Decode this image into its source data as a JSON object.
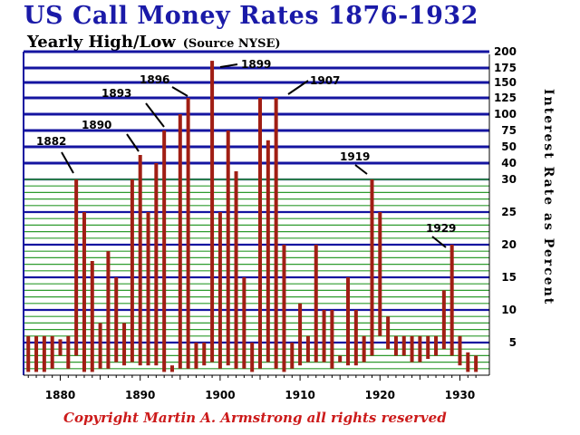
{
  "title": "US Call Money Rates 1876-1932",
  "subtitle": "Yearly High/Low",
  "source": "(Source NYSE)",
  "copyright": "Copyright Martin A. Armstrong all rights reserved",
  "chart_data": {
    "type": "bar",
    "title": "US Call Money Rates 1876-1932",
    "subtitle": "Yearly High/Low",
    "ylabel": "Interest Rate as Percent",
    "xlabel": "",
    "x_ticks": [
      1880,
      1890,
      1900,
      1910,
      1920,
      1930
    ],
    "y_ticks": [
      5,
      10,
      15,
      20,
      25,
      30,
      40,
      50,
      75,
      100,
      125,
      150,
      175,
      200
    ],
    "y_scale": "piecewise: linear 0-30 (lower section), compressed 30-200 (upper section)",
    "xlim": [
      1876,
      1932
    ],
    "ylim": [
      0,
      200
    ],
    "grid": true,
    "series": [
      {
        "x": [
          1876,
          1877,
          1878,
          1879,
          1880,
          1881,
          1882,
          1883,
          1884,
          1885,
          1886,
          1887,
          1888,
          1889,
          1890,
          1891,
          1892,
          1893,
          1894,
          1895,
          1896,
          1897,
          1898,
          1899,
          1900,
          1901,
          1902,
          1903,
          1904,
          1905,
          1906,
          1907,
          1908,
          1909,
          1910,
          1911,
          1912,
          1913,
          1914,
          1915,
          1916,
          1917,
          1918,
          1919,
          1920,
          1921,
          1922,
          1923,
          1924,
          1925,
          1926,
          1927,
          1928,
          1929,
          1930,
          1931,
          1932
        ],
        "high": [
          6,
          6,
          6,
          6,
          5.5,
          6,
          30,
          25,
          17.5,
          8,
          19,
          15,
          8,
          30,
          45,
          25,
          40,
          75,
          1.5,
          100,
          125,
          5,
          5,
          186,
          25,
          75,
          35,
          15,
          5,
          125,
          60,
          125,
          20,
          5,
          11,
          6,
          20,
          10,
          10,
          3,
          15,
          10,
          6,
          30,
          25,
          9,
          6,
          6,
          6,
          6,
          6,
          6,
          13,
          20,
          6,
          3.5,
          3
        ],
        "low": [
          0.5,
          0.5,
          0.5,
          1,
          3,
          1,
          3,
          0.5,
          0.5,
          1,
          1,
          2,
          1.5,
          2,
          1.5,
          1.5,
          1.5,
          0.5,
          0.5,
          1,
          1,
          1,
          1.5,
          2,
          1,
          1.5,
          1,
          1,
          0.5,
          1,
          2,
          1,
          0.5,
          1,
          1.5,
          2,
          2,
          2,
          1,
          2,
          1.5,
          1.5,
          2,
          3,
          6,
          4,
          3,
          3,
          2,
          2,
          2.5,
          3,
          4,
          3,
          1.5,
          0.5,
          0.5
        ]
      }
    ],
    "annotations": [
      "1882",
      "1890",
      "1893",
      "1896",
      "1899",
      "1907",
      "1919",
      "1929"
    ]
  }
}
